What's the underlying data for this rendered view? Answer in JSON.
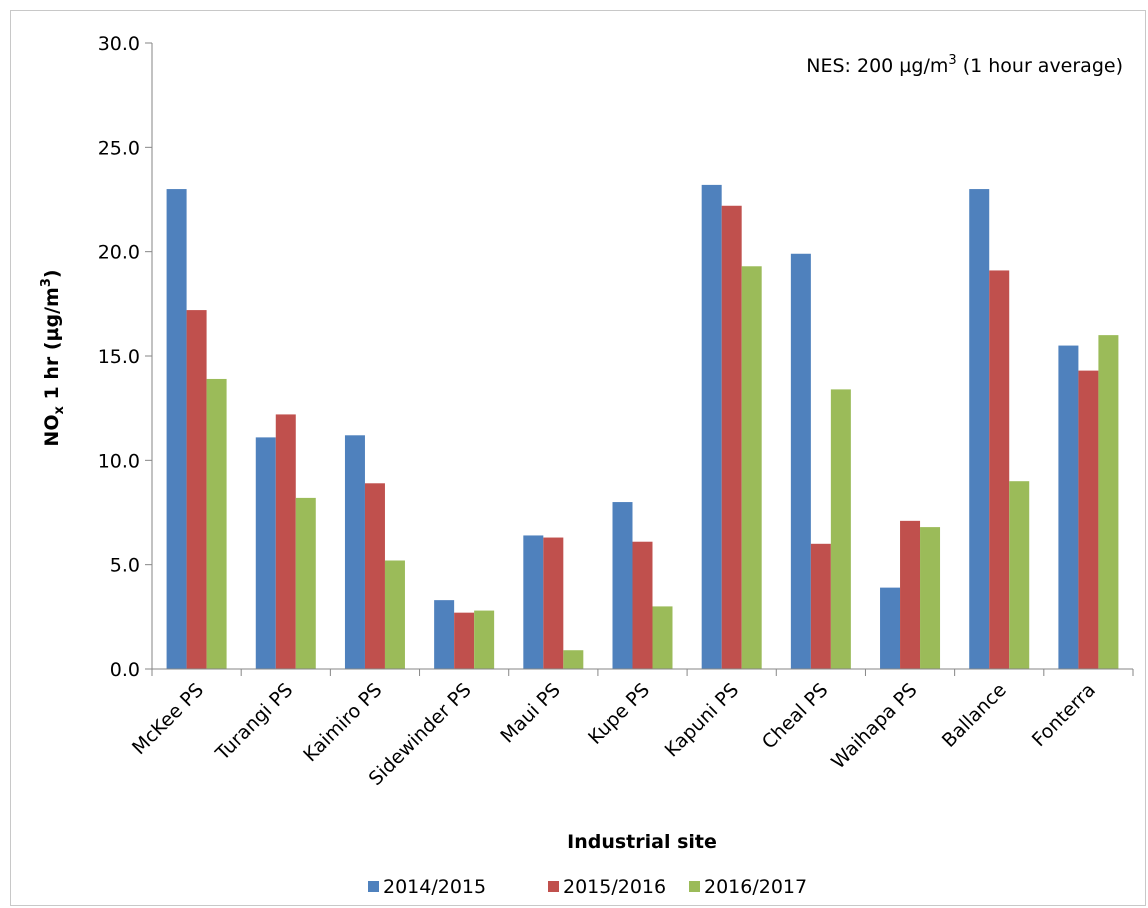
{
  "chart_data": {
    "type": "bar",
    "title": "",
    "annotation": {
      "prefix": "NES: 200 µg/m",
      "sup": "3",
      "suffix": " (1 hour average)"
    },
    "xlabel": "Industrial site",
    "ylabel": {
      "part1": "NO",
      "sub": "x",
      "part2": " 1 hr (µg/m",
      "sup": "3",
      "part3": ")"
    },
    "ylim": [
      0,
      30
    ],
    "yticks": [
      "0.0",
      "5.0",
      "10.0",
      "15.0",
      "20.0",
      "25.0",
      "30.0"
    ],
    "ytick_values": [
      0,
      5,
      10,
      15,
      20,
      25,
      30
    ],
    "grid": false,
    "legend_position": "bottom",
    "categories": [
      "McKee PS",
      "Turangi PS",
      "Kaimiro PS",
      "Sidewinder PS",
      "Maui PS",
      "Kupe PS",
      "Kapuni PS",
      "Cheal PS",
      "Waihapa PS",
      "Ballance",
      "Fonterra"
    ],
    "series": [
      {
        "name": "2014/2015",
        "color": "#4F81BD",
        "values": [
          23.0,
          11.1,
          11.2,
          3.3,
          6.4,
          8.0,
          23.2,
          19.9,
          3.9,
          23.0,
          15.5
        ]
      },
      {
        "name": "2015/2016",
        "color": "#C0504D",
        "values": [
          17.2,
          12.2,
          8.9,
          2.7,
          6.3,
          6.1,
          22.2,
          6.0,
          7.1,
          19.1,
          14.3
        ]
      },
      {
        "name": "2016/2017",
        "color": "#9BBB59",
        "values": [
          13.9,
          8.2,
          5.2,
          2.8,
          0.9,
          3.0,
          19.3,
          13.4,
          6.8,
          9.0,
          16.0
        ]
      }
    ]
  }
}
